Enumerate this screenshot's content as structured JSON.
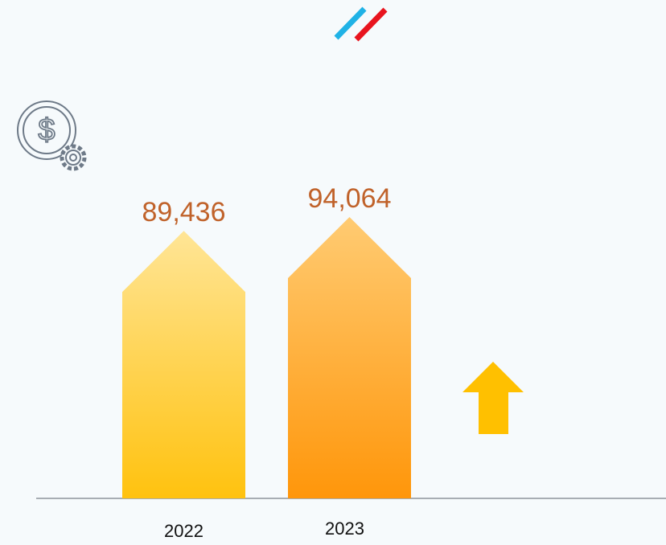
{
  "chart_data": {
    "type": "bar",
    "categories": [
      "2022",
      "2023"
    ],
    "values": [
      89436,
      94064
    ],
    "value_labels": [
      "89,436",
      "94,064"
    ]
  }
}
